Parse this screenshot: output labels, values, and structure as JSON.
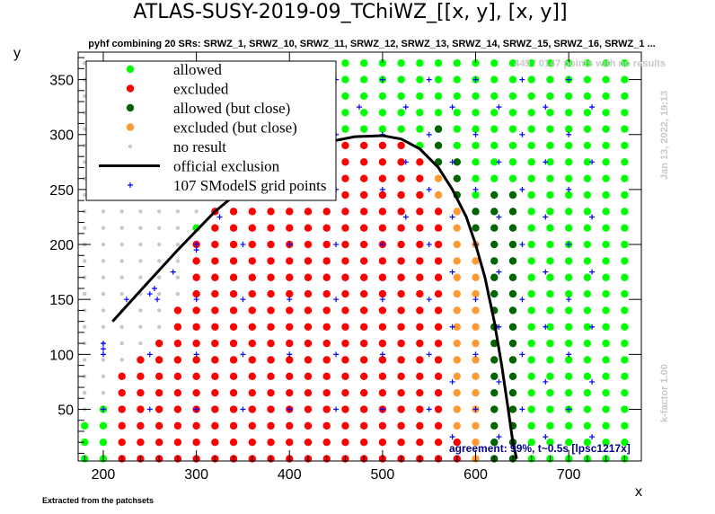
{
  "title": "ATLAS-SUSY-2019-09_TChiWZ_[[x, y], [x, y]]",
  "subtitle": "pyhf combining 20 SRs: SRWZ_1, SRWZ_10, SRWZ_11, SRWZ_12, SRWZ_13, SRWZ_14, SRWZ_15, SRWZ_16, SRWZ_1 ...",
  "points_note": "449 / 0147 points with no results",
  "date_note": "Jan 13, 2022, 19:13",
  "kfactor_note": "k-factor 1.00",
  "agreement_note": "agreement: 99%, t~0.5s [lpsc1217x]",
  "footer_note": "Extracted from the patchsets",
  "colors": {
    "allowed": "#00ff00",
    "excluded": "#ff0000",
    "allowed_close": "#006400",
    "excluded_close": "#ff9933",
    "no_result": "#c8c8c8",
    "official": "#000000",
    "grid": "#0000ff"
  },
  "chart_data": {
    "type": "scatter",
    "title": "ATLAS-SUSY-2019-09_TChiWZ_[[x, y], [x, y]]",
    "xlabel": "x",
    "ylabel": "y",
    "xlim": [
      173,
      778
    ],
    "ylim": [
      3,
      375
    ],
    "xticks": [
      200,
      300,
      400,
      500,
      600,
      700
    ],
    "yticks": [
      50,
      100,
      150,
      200,
      250,
      300,
      350
    ],
    "legend": {
      "placement": "top-left",
      "entries": [
        {
          "label": "allowed",
          "marker": "allowed"
        },
        {
          "label": "excluded",
          "marker": "excluded"
        },
        {
          "label": "allowed (but close)",
          "marker": "allowed_close"
        },
        {
          "label": "excluded (but close)",
          "marker": "excluded_close"
        },
        {
          "label": "no result",
          "marker": "no_result"
        },
        {
          "label": "official exclusion",
          "marker": "line"
        },
        {
          "label": "107 SModelS grid points",
          "marker": "cross"
        }
      ]
    },
    "point_grid": {
      "x_start": 180,
      "x_step": 20,
      "x_end": 760,
      "y_start": 5,
      "y_step": 15,
      "y_end": 365
    },
    "official_exclusion": {
      "x": [
        210,
        240,
        280,
        320,
        360,
        400,
        440,
        470,
        500,
        520,
        540,
        560,
        575,
        590,
        600,
        610,
        620,
        628,
        635,
        640,
        644
      ],
      "y": [
        130,
        158,
        195,
        230,
        258,
        280,
        293,
        298,
        299,
        296,
        287,
        270,
        250,
        225,
        200,
        170,
        130,
        90,
        50,
        20,
        5
      ]
    },
    "grid_points": [
      [
        200,
        105
      ],
      [
        200,
        110
      ],
      [
        200,
        100
      ],
      [
        200,
        50
      ],
      [
        250,
        155
      ],
      [
        255,
        160
      ],
      [
        258,
        150
      ],
      [
        300,
        200
      ],
      [
        300,
        195
      ],
      [
        300,
        150
      ],
      [
        300,
        100
      ],
      [
        300,
        50
      ],
      [
        250,
        100
      ],
      [
        250,
        50
      ],
      [
        350,
        300
      ],
      [
        350,
        250
      ],
      [
        350,
        200
      ],
      [
        350,
        150
      ],
      [
        350,
        100
      ],
      [
        350,
        50
      ],
      [
        400,
        300
      ],
      [
        400,
        250
      ],
      [
        400,
        200
      ],
      [
        400,
        150
      ],
      [
        400,
        100
      ],
      [
        400,
        50
      ],
      [
        450,
        300
      ],
      [
        450,
        250
      ],
      [
        450,
        200
      ],
      [
        450,
        150
      ],
      [
        450,
        100
      ],
      [
        450,
        50
      ],
      [
        500,
        350
      ],
      [
        500,
        300
      ],
      [
        500,
        250
      ],
      [
        500,
        200
      ],
      [
        500,
        150
      ],
      [
        500,
        100
      ],
      [
        500,
        50
      ],
      [
        550,
        350
      ],
      [
        550,
        300
      ],
      [
        550,
        250
      ],
      [
        550,
        200
      ],
      [
        550,
        150
      ],
      [
        550,
        100
      ],
      [
        550,
        50
      ],
      [
        600,
        350
      ],
      [
        600,
        300
      ],
      [
        600,
        250
      ],
      [
        600,
        200
      ],
      [
        600,
        150
      ],
      [
        600,
        100
      ],
      [
        600,
        50
      ],
      [
        650,
        350
      ],
      [
        650,
        300
      ],
      [
        650,
        250
      ],
      [
        650,
        200
      ],
      [
        650,
        150
      ],
      [
        650,
        100
      ],
      [
        650,
        50
      ],
      [
        700,
        350
      ],
      [
        700,
        300
      ],
      [
        700,
        250
      ],
      [
        700,
        200
      ],
      [
        700,
        150
      ],
      [
        700,
        100
      ],
      [
        700,
        50
      ],
      [
        400,
        350
      ],
      [
        450,
        350
      ],
      [
        350,
        350
      ],
      [
        225,
        150
      ],
      [
        275,
        175
      ],
      [
        325,
        225
      ],
      [
        375,
        275
      ],
      [
        425,
        325
      ],
      [
        475,
        325
      ],
      [
        525,
        325
      ],
      [
        575,
        325
      ],
      [
        625,
        325
      ],
      [
        675,
        325
      ],
      [
        725,
        325
      ],
      [
        725,
        275
      ],
      [
        725,
        225
      ],
      [
        725,
        175
      ],
      [
        725,
        125
      ],
      [
        725,
        75
      ],
      [
        725,
        25
      ],
      [
        675,
        275
      ],
      [
        675,
        225
      ],
      [
        675,
        175
      ],
      [
        675,
        125
      ],
      [
        675,
        75
      ],
      [
        675,
        25
      ],
      [
        625,
        275
      ],
      [
        625,
        225
      ],
      [
        625,
        175
      ],
      [
        625,
        125
      ],
      [
        625,
        75
      ],
      [
        625,
        25
      ],
      [
        575,
        275
      ],
      [
        575,
        225
      ],
      [
        575,
        175
      ],
      [
        575,
        125
      ],
      [
        575,
        75
      ],
      [
        575,
        25
      ],
      [
        525,
        275
      ],
      [
        525,
        225
      ]
    ]
  }
}
